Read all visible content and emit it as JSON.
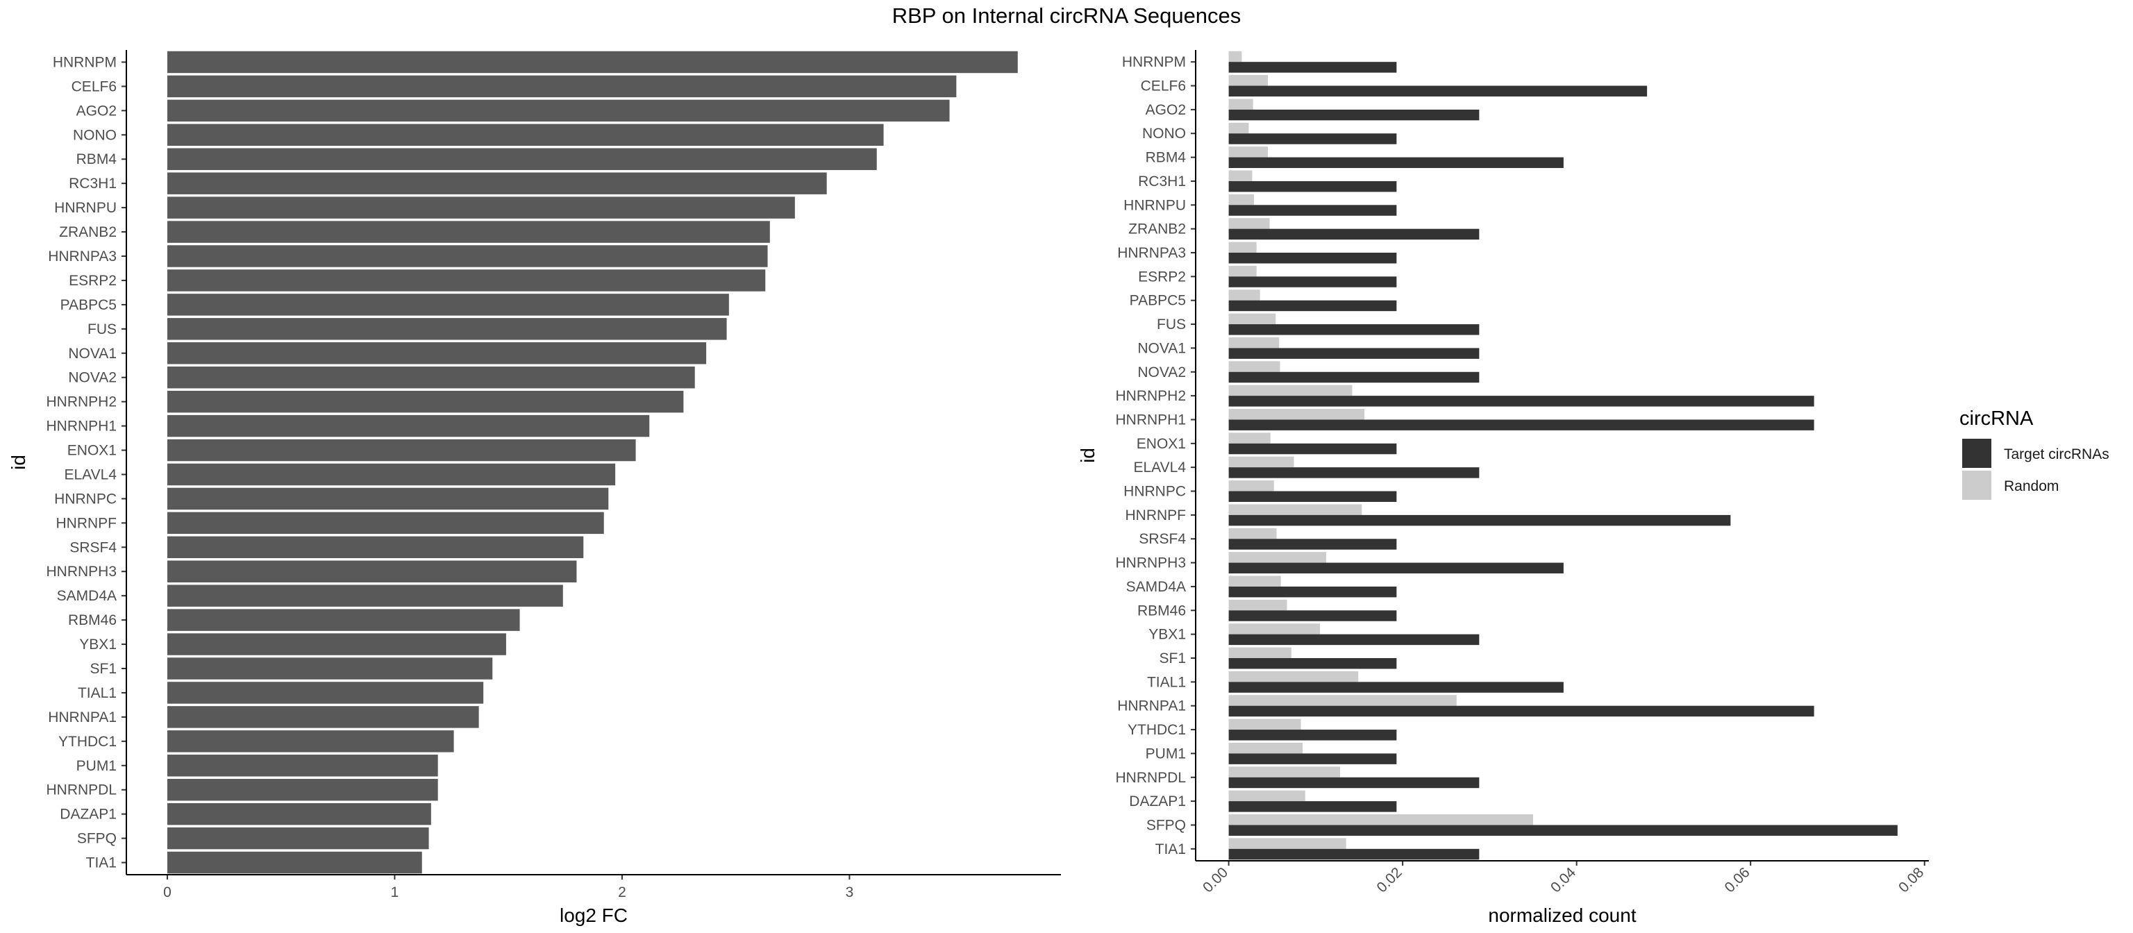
{
  "title": "RBP on Internal circRNA Sequences",
  "colors": {
    "bar_left": "#595959",
    "target": "#333333",
    "random": "#cccccc",
    "axis": "#000000",
    "tick_text": "#4d4d4d"
  },
  "chart_data": [
    {
      "type": "bar",
      "orientation": "horizontal",
      "xlabel": "log2 FC",
      "ylabel": "id",
      "xlim": [
        -0.18,
        3.93
      ],
      "xticks": [
        0,
        1,
        2,
        3
      ],
      "xtick_labels": [
        "0",
        "1",
        "2",
        "3"
      ],
      "grid": false,
      "categories": [
        "HNRNPM",
        "CELF6",
        "AGO2",
        "NONO",
        "RBM4",
        "RC3H1",
        "HNRNPU",
        "ZRANB2",
        "HNRNPA3",
        "ESRP2",
        "PABPC5",
        "FUS",
        "NOVA1",
        "NOVA2",
        "HNRNPH2",
        "HNRNPH1",
        "ENOX1",
        "ELAVL4",
        "HNRNPC",
        "HNRNPF",
        "SRSF4",
        "HNRNPH3",
        "SAMD4A",
        "RBM46",
        "YBX1",
        "SF1",
        "TIAL1",
        "HNRNPA1",
        "YTHDC1",
        "PUM1",
        "HNRNPDL",
        "DAZAP1",
        "SFPQ",
        "TIA1"
      ],
      "values": [
        3.74,
        3.47,
        3.44,
        3.15,
        3.12,
        2.9,
        2.76,
        2.65,
        2.64,
        2.63,
        2.47,
        2.46,
        2.37,
        2.32,
        2.27,
        2.12,
        2.06,
        1.97,
        1.94,
        1.92,
        1.83,
        1.8,
        1.74,
        1.55,
        1.49,
        1.43,
        1.39,
        1.37,
        1.26,
        1.19,
        1.19,
        1.16,
        1.15,
        1.12
      ]
    },
    {
      "type": "bar",
      "orientation": "horizontal",
      "grouped": true,
      "xlabel": "normalized count",
      "ylabel": "id",
      "xlim": [
        -0.0038,
        0.0805
      ],
      "xticks": [
        0,
        0.02,
        0.04,
        0.06,
        0.08
      ],
      "xtick_labels": [
        "0.00",
        "0.02",
        "0.04",
        "0.06",
        "0.08"
      ],
      "grid": false,
      "legend_title": "circRNA",
      "legend_position": "right",
      "categories": [
        "HNRNPM",
        "CELF6",
        "AGO2",
        "NONO",
        "RBM4",
        "RC3H1",
        "HNRNPU",
        "ZRANB2",
        "HNRNPA3",
        "ESRP2",
        "PABPC5",
        "FUS",
        "NOVA1",
        "NOVA2",
        "HNRNPH2",
        "HNRNPH1",
        "ENOX1",
        "ELAVL4",
        "HNRNPC",
        "HNRNPF",
        "SRSF4",
        "HNRNPH3",
        "SAMD4A",
        "RBM46",
        "YBX1",
        "SF1",
        "TIAL1",
        "HNRNPA1",
        "YTHDC1",
        "PUM1",
        "HNRNPDL",
        "DAZAP1",
        "SFPQ",
        "TIA1"
      ],
      "series": [
        {
          "name": "Target circRNAs",
          "values": [
            0.0193,
            0.0481,
            0.0288,
            0.0193,
            0.0385,
            0.0193,
            0.0193,
            0.0288,
            0.0193,
            0.0193,
            0.0193,
            0.0288,
            0.0288,
            0.0288,
            0.0673,
            0.0673,
            0.0193,
            0.0288,
            0.0193,
            0.0577,
            0.0193,
            0.0385,
            0.0193,
            0.0193,
            0.0288,
            0.0193,
            0.0385,
            0.0673,
            0.0193,
            0.0193,
            0.0288,
            0.0193,
            0.0769,
            0.0288
          ]
        },
        {
          "name": "Random",
          "values": [
            0.0015,
            0.0045,
            0.0028,
            0.0023,
            0.0045,
            0.0027,
            0.0029,
            0.0047,
            0.0032,
            0.0032,
            0.0036,
            0.0054,
            0.0058,
            0.0059,
            0.0142,
            0.0156,
            0.0048,
            0.0075,
            0.0052,
            0.0153,
            0.0055,
            0.0112,
            0.006,
            0.0067,
            0.0105,
            0.0072,
            0.0149,
            0.0262,
            0.0083,
            0.0085,
            0.0128,
            0.0088,
            0.035,
            0.0135
          ]
        }
      ]
    }
  ]
}
